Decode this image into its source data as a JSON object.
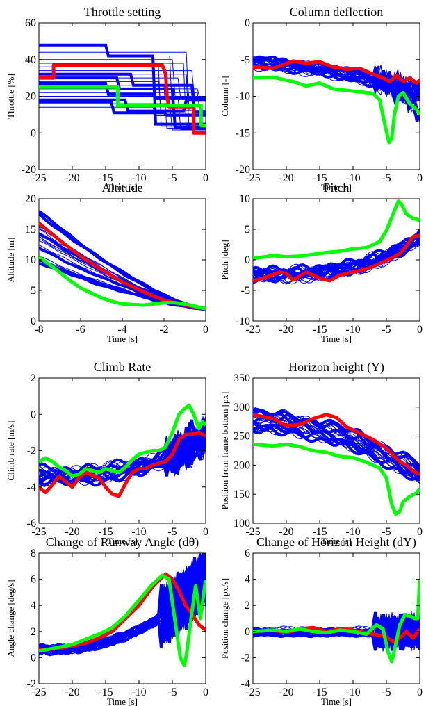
{
  "figure": {
    "panels": 8
  },
  "colors": {
    "trials": "#0000ff",
    "highlight_red": "#ff0000",
    "highlight_green": "#00ff00",
    "axis": "#000000"
  },
  "chart_data": [
    {
      "type": "line",
      "title": "Throttle setting",
      "xlabel": "Time [s]",
      "ylabel": "Throttle [%]",
      "xlim": [
        -25,
        0
      ],
      "ylim": [
        -20,
        60
      ],
      "xticks": [
        -25,
        -20,
        -15,
        -10,
        -5,
        0
      ],
      "yticks": [
        -20,
        0,
        20,
        40,
        60
      ],
      "series": [
        {
          "role": "red",
          "x": [
            -25,
            -22.8,
            -22.8,
            -6.5,
            -6.0,
            -5.8,
            -5.5,
            -1.8,
            -1.8,
            0
          ],
          "y": [
            30,
            30,
            37,
            37,
            32,
            20,
            14,
            14,
            0,
            0
          ]
        },
        {
          "role": "green",
          "x": [
            -25,
            -13.2,
            -13.2,
            -5.5,
            -5.5,
            -0.7,
            -0.7,
            0
          ],
          "y": [
            25,
            25,
            15,
            15,
            15,
            15,
            4,
            4
          ]
        }
      ]
    },
    {
      "type": "line",
      "title": "Column deflection",
      "xlabel": "Time [s]",
      "ylabel": "Column [-]",
      "xlim": [
        -25,
        0
      ],
      "ylim": [
        -20,
        0
      ],
      "xticks": [
        -25,
        -20,
        -15,
        -10,
        -5,
        0
      ],
      "yticks": [
        -20,
        -15,
        -10,
        -5,
        0
      ],
      "series": [
        {
          "role": "red",
          "x": [
            -25,
            -22,
            -19,
            -17,
            -15,
            -13,
            -11,
            -9,
            -7,
            -5.5,
            -4.5,
            -3.5,
            -2.5,
            -1.5,
            -0.5,
            0
          ],
          "y": [
            -6.0,
            -6.2,
            -5.2,
            -5.5,
            -5.3,
            -6.0,
            -6.3,
            -6.2,
            -7.0,
            -7.5,
            -8.0,
            -7.2,
            -8.0,
            -7.5,
            -8.2,
            -7.8
          ]
        },
        {
          "role": "green",
          "x": [
            -25,
            -22,
            -19,
            -17,
            -15,
            -13,
            -11,
            -9,
            -7,
            -6,
            -5.2,
            -4.6,
            -4.2,
            -3.8,
            -3.2,
            -2.5,
            -1.5,
            -0.5,
            0
          ],
          "y": [
            -7.5,
            -7.4,
            -8.0,
            -8.6,
            -8.2,
            -9.0,
            -9.2,
            -9.4,
            -9.6,
            -10.5,
            -14.0,
            -16.3,
            -15.8,
            -12.5,
            -10.0,
            -9.5,
            -11.0,
            -11.8,
            -12.5
          ]
        }
      ]
    },
    {
      "type": "line",
      "title": "Altitude",
      "xlabel": "Time [s]",
      "ylabel": "Altitude [m]",
      "xlim": [
        -8,
        0
      ],
      "ylim": [
        0,
        20
      ],
      "xticks": [
        -8,
        -6,
        -4,
        -2,
        0
      ],
      "yticks": [
        0,
        5,
        10,
        15,
        20
      ],
      "series": [
        {
          "role": "red",
          "x": [
            -8,
            -7,
            -6,
            -5,
            -4,
            -3,
            -2,
            -1,
            0
          ],
          "y": [
            16,
            13.2,
            10.6,
            8.4,
            6.4,
            4.8,
            3.4,
            2.6,
            2.0
          ]
        },
        {
          "role": "green",
          "x": [
            -8,
            -7.2,
            -6.5,
            -6,
            -5,
            -4.5,
            -4,
            -3,
            -2,
            -1.5,
            -1,
            0
          ],
          "y": [
            10.5,
            8.5,
            6.6,
            5.4,
            3.8,
            3.2,
            2.8,
            2.6,
            3.0,
            3.0,
            2.8,
            2.0
          ]
        }
      ]
    },
    {
      "type": "line",
      "title": "Pitch",
      "xlabel": "Time [s]",
      "ylabel": "Pitch [deg]",
      "xlim": [
        -25,
        0
      ],
      "ylim": [
        -10,
        10
      ],
      "xticks": [
        -25,
        -20,
        -15,
        -10,
        -5,
        0
      ],
      "yticks": [
        -10,
        -5,
        0,
        5,
        10
      ],
      "series": [
        {
          "role": "red",
          "x": [
            -25,
            -23,
            -21,
            -20,
            -19,
            -17,
            -15,
            -13.5,
            -12,
            -10,
            -8,
            -6,
            -4,
            -3,
            -2,
            -1,
            0
          ],
          "y": [
            -3.5,
            -2.8,
            -2.0,
            -2.2,
            -3.3,
            -2.0,
            -3.0,
            -3.4,
            -2.5,
            -2.0,
            -1.5,
            -0.6,
            0.4,
            1.0,
            2.3,
            3.8,
            4.0
          ]
        },
        {
          "role": "green",
          "x": [
            -25,
            -22,
            -20,
            -18,
            -16,
            -14,
            -12,
            -10,
            -8,
            -6,
            -5,
            -4,
            -3.2,
            -2.8,
            -2,
            -1,
            0
          ],
          "y": [
            0.2,
            0.7,
            0.5,
            0.6,
            0.9,
            1.2,
            1.4,
            1.8,
            2.0,
            3.0,
            4.8,
            7.5,
            9.6,
            9.2,
            7.5,
            6.8,
            6.5
          ]
        }
      ]
    },
    {
      "type": "line",
      "title": "Climb Rate",
      "xlabel": "Time [s]",
      "ylabel": "Climb rate [m/s]",
      "xlim": [
        -25,
        0
      ],
      "ylim": [
        -6,
        2
      ],
      "xticks": [
        -25,
        -20,
        -15,
        -10,
        -5,
        0
      ],
      "yticks": [
        -6,
        -4,
        -2,
        0,
        2
      ],
      "series": [
        {
          "role": "red",
          "x": [
            -25,
            -24,
            -23,
            -22,
            -21,
            -20,
            -19,
            -18,
            -16,
            -15,
            -14,
            -13,
            -12,
            -11,
            -10,
            -9,
            -8,
            -7,
            -6,
            -5,
            -4,
            -3,
            -2,
            -1,
            0
          ],
          "y": [
            -4.0,
            -4.3,
            -3.9,
            -3.4,
            -3.7,
            -4.0,
            -3.5,
            -3.2,
            -3.5,
            -4.0,
            -4.4,
            -4.5,
            -3.8,
            -3.2,
            -3.0,
            -3.0,
            -2.8,
            -2.7,
            -2.6,
            -2.2,
            -1.4,
            -1.1,
            -1.1,
            -1.0,
            -1.2
          ]
        },
        {
          "role": "green",
          "x": [
            -25,
            -24,
            -23,
            -22,
            -21,
            -20,
            -19,
            -18,
            -17,
            -16,
            -15,
            -14,
            -13,
            -12,
            -11,
            -10,
            -9,
            -8,
            -7,
            -6,
            -5,
            -4,
            -3.2,
            -2.5,
            -1.8,
            -1,
            -0.5,
            0
          ],
          "y": [
            -2.6,
            -2.4,
            -2.6,
            -2.9,
            -3.1,
            -3.4,
            -3.3,
            -3.0,
            -3.1,
            -3.2,
            -3.0,
            -3.1,
            -3.2,
            -2.9,
            -2.5,
            -2.2,
            -2.1,
            -2.0,
            -2.0,
            -1.8,
            -1.0,
            0.0,
            0.3,
            0.5,
            0.0,
            -0.8,
            -0.4,
            -0.6
          ]
        }
      ]
    },
    {
      "type": "line",
      "title": "Horizon height (Y)",
      "xlabel": "Time [s]",
      "ylabel": "Position from frame bottom [px]",
      "xlim": [
        -25,
        0
      ],
      "ylim": [
        100,
        350
      ],
      "xticks": [
        -25,
        -20,
        -15,
        -10,
        -5,
        0
      ],
      "yticks": [
        100,
        150,
        200,
        250,
        300,
        350
      ],
      "series": [
        {
          "role": "red",
          "x": [
            -25,
            -22,
            -20,
            -18,
            -16,
            -14,
            -12.5,
            -11,
            -9,
            -7,
            -5,
            -3,
            -2,
            -1,
            0
          ],
          "y": [
            287,
            280,
            268,
            270,
            280,
            287,
            282,
            266,
            255,
            244,
            229,
            206,
            200,
            190,
            184
          ]
        },
        {
          "role": "green",
          "x": [
            -25,
            -22,
            -20,
            -18,
            -16,
            -14,
            -12,
            -10,
            -8,
            -6,
            -5,
            -4.2,
            -3.6,
            -3.0,
            -2.5,
            -1.5,
            -0.5,
            0
          ],
          "y": [
            236,
            233,
            236,
            232,
            225,
            222,
            215,
            213,
            205,
            195,
            178,
            132,
            116,
            120,
            137,
            146,
            152,
            160
          ]
        }
      ]
    },
    {
      "type": "line",
      "title": "Change of Runway Angle (dθ)",
      "xlabel": "Time [s]",
      "ylabel": "Angle change [deg/s]",
      "xlim": [
        -25,
        0
      ],
      "ylim": [
        -2,
        8
      ],
      "xticks": [
        -25,
        -20,
        -15,
        -10,
        -5,
        0
      ],
      "yticks": [
        -2,
        0,
        2,
        4,
        6,
        8
      ],
      "series": [
        {
          "role": "red",
          "x": [
            -25,
            -22,
            -20,
            -18,
            -16,
            -14,
            -12,
            -10,
            -8,
            -6,
            -5,
            -4,
            -3,
            -2,
            -1,
            0
          ],
          "y": [
            0.6,
            0.7,
            0.9,
            1.1,
            1.5,
            2.0,
            3.0,
            4.0,
            5.4,
            6.4,
            6.0,
            5.1,
            4.0,
            3.3,
            2.5,
            2.1
          ]
        },
        {
          "role": "green",
          "x": [
            -25,
            -22,
            -20,
            -18,
            -16,
            -14,
            -12,
            -10,
            -8,
            -6.5,
            -5.5,
            -4.5,
            -3.8,
            -3.2,
            -2.8,
            -2.2,
            -1.5,
            -0.8,
            0
          ],
          "y": [
            0.5,
            0.8,
            1.0,
            1.4,
            1.8,
            2.3,
            3.2,
            4.4,
            5.6,
            6.3,
            6.0,
            2.5,
            0.0,
            -0.6,
            0.5,
            3.0,
            5.5,
            3.0,
            6.0
          ]
        }
      ]
    },
    {
      "type": "line",
      "title": "Change of Horizon Height (dY)",
      "xlabel": "Time [s]",
      "ylabel": "Position change [px/s]",
      "xlim": [
        -25,
        0
      ],
      "ylim": [
        -4,
        6
      ],
      "xticks": [
        -25,
        -20,
        -15,
        -10,
        -5,
        0
      ],
      "yticks": [
        -4,
        -2,
        0,
        2,
        4,
        6
      ],
      "series": [
        {
          "role": "red",
          "x": [
            -25,
            -22,
            -20,
            -18,
            -16,
            -14,
            -12,
            -10,
            -8,
            -6,
            -5,
            -4,
            -3,
            -2,
            -1,
            0
          ],
          "y": [
            0.0,
            0.1,
            -0.1,
            0.2,
            0.3,
            0.0,
            0.2,
            0.1,
            -0.1,
            -0.3,
            -0.4,
            -0.8,
            -0.5,
            0.0,
            -0.5,
            0.2
          ]
        },
        {
          "role": "green",
          "x": [
            -25,
            -22,
            -20,
            -18,
            -16,
            -14,
            -12,
            -10,
            -8,
            -6.5,
            -5.5,
            -4.8,
            -4.2,
            -3.6,
            -3,
            -2.2,
            -1.5,
            -0.8,
            -0.3,
            0
          ],
          "y": [
            0.0,
            0.1,
            0.0,
            0.2,
            0.0,
            -0.1,
            0.1,
            0.0,
            -0.2,
            0.5,
            0.2,
            -1.5,
            -2.3,
            -1.0,
            0.5,
            1.3,
            1.2,
            1.0,
            1.0,
            4.0
          ]
        }
      ]
    }
  ]
}
